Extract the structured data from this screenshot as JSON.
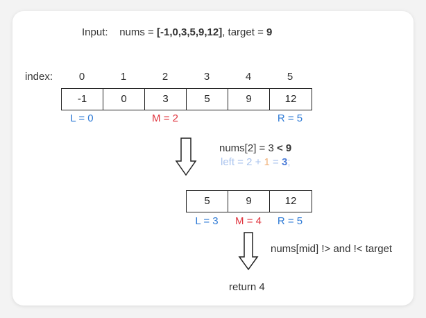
{
  "input": {
    "prefix": "Input:",
    "nums_label": "nums = ",
    "nums_value": "[-1,0,3,5,9,12]",
    "target_label": ", target = ",
    "target_value": "9"
  },
  "index_label": "index:",
  "indices": [
    "0",
    "1",
    "2",
    "3",
    "4",
    "5"
  ],
  "array1": [
    "-1",
    "0",
    "3",
    "5",
    "9",
    "12"
  ],
  "step1_labels": {
    "left": "L = 0",
    "mid": "M = 2",
    "right": "R = 5"
  },
  "step1_note": {
    "compare_prefix": "nums[2] = 3 ",
    "compare_op": "< 9",
    "update_part1": "left = 2 + ",
    "update_part2": "1",
    "update_part3": " = ",
    "update_part4": "3",
    "update_part5": ";"
  },
  "array2": [
    "5",
    "9",
    "12"
  ],
  "step2_labels": {
    "left": "L = 3",
    "mid": "M = 4",
    "right": "R = 5"
  },
  "step2_note": "nums[mid] !> and !< target",
  "result": "return 4",
  "colors": {
    "left_right": "#2f7bd6",
    "mid": "#e0343e",
    "faded_blue": "#a9c3ee",
    "orange": "#f0b27a"
  }
}
